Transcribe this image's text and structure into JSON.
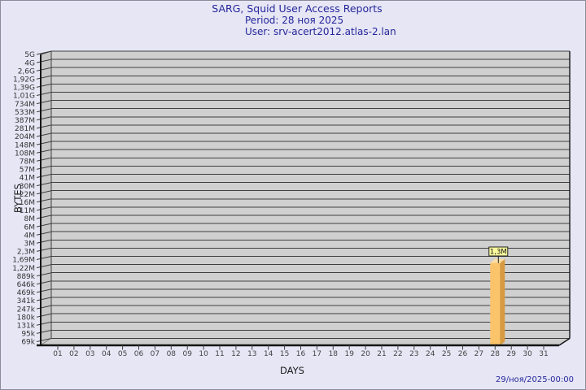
{
  "header": {
    "title": "SARG, Squid User Access Reports",
    "period": "Period: 28 ноя 2025",
    "user": "User: srv-acert2012.atlas-2.lan"
  },
  "footer": {
    "timestamp": "29/ноя/2025-00:00"
  },
  "chart_data": {
    "type": "bar",
    "title": "SARG, Squid User Access Reports",
    "subtitle_lines": [
      "Period: 28 ноя 2025",
      "User: srv-acert2012.atlas-2.lan"
    ],
    "xlabel": "DAYS",
    "ylabel": "BYTES",
    "y_scale": "log",
    "ylim_bytes": [
      69000,
      5000000000
    ],
    "y_tick_labels": [
      "5G",
      "4G",
      "2,6G",
      "1,92G",
      "1,39G",
      "1,01G",
      "734M",
      "533M",
      "387M",
      "281M",
      "204M",
      "148M",
      "108M",
      "78M",
      "57M",
      "41M",
      "30M",
      "22M",
      "16M",
      "11M",
      "8M",
      "6M",
      "4M",
      "3M",
      "2,3M",
      "1,69M",
      "1,22M",
      "889k",
      "646k",
      "469k",
      "341k",
      "247k",
      "180k",
      "131k",
      "95k",
      "69k"
    ],
    "categories": [
      "01",
      "02",
      "03",
      "04",
      "05",
      "06",
      "07",
      "08",
      "09",
      "10",
      "11",
      "12",
      "13",
      "14",
      "15",
      "16",
      "17",
      "18",
      "19",
      "20",
      "21",
      "22",
      "23",
      "24",
      "25",
      "26",
      "27",
      "28",
      "29",
      "30",
      "31"
    ],
    "series": [
      {
        "name": "bytes",
        "values": [
          0,
          0,
          0,
          0,
          0,
          0,
          0,
          0,
          0,
          0,
          0,
          0,
          0,
          0,
          0,
          0,
          0,
          0,
          0,
          0,
          0,
          0,
          0,
          0,
          0,
          0,
          0,
          1300000,
          0,
          0,
          0
        ]
      }
    ],
    "annotations": [
      {
        "day": "28",
        "label": "1,3M",
        "value": 1300000
      }
    ],
    "legend": "none",
    "grid": "horizontal",
    "colors": {
      "background": "#E6E6F5",
      "plot_bg": "#D0D0D0",
      "wall": "#C7C7C7",
      "floor": "#CDCDCD",
      "grid": "#3F3F3F",
      "axis": "#151515",
      "tick_text": "#333333",
      "bar_front": "#FBC46A",
      "bar_side": "#D79A3F",
      "bar_top": "#FFDE9E",
      "annotation_bg": "#FCFC9E",
      "annotation_border": "#222222",
      "title_text": "#26269B"
    }
  }
}
